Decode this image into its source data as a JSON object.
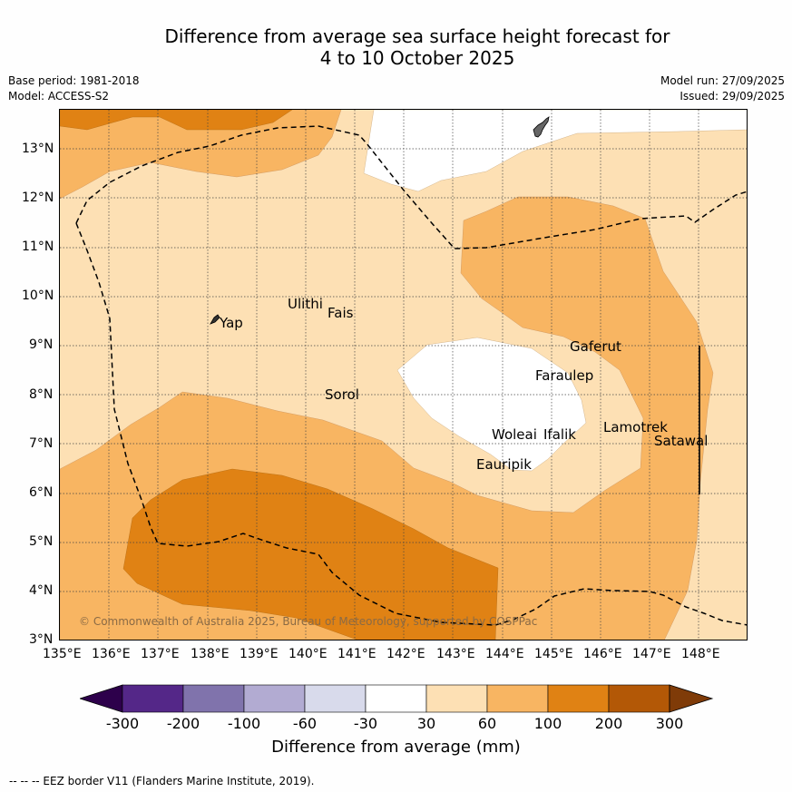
{
  "title": {
    "line1": "Difference from average sea surface height forecast for",
    "line2": "4 to 10 October 2025"
  },
  "meta": {
    "base_period": "Base period: 1981-2018",
    "model": "Model: ACCESS-S2",
    "model_run": "Model run: 27/09/2025",
    "issued": "Issued: 29/09/2025"
  },
  "map": {
    "lat_labels": [
      "13°N",
      "12°N",
      "11°N",
      "10°N",
      "9°N",
      "8°N",
      "7°N",
      "6°N",
      "5°N",
      "4°N",
      "3°N"
    ],
    "lon_labels": [
      "135°E",
      "136°E",
      "137°E",
      "138°E",
      "139°E",
      "140°E",
      "141°E",
      "142°E",
      "143°E",
      "144°E",
      "145°E",
      "146°E",
      "147°E",
      "148°E"
    ],
    "places": {
      "yap": "Yap",
      "ulithi": "Ulithi",
      "fais": "Fais",
      "sorol": "Sorol",
      "gaferut": "Gaferut",
      "faraulep": "Faraulep",
      "woleai": "Woleai",
      "ifalik": "Ifalik",
      "lamotrek": "Lamotrek",
      "satawal": "Satawal",
      "eauripik": "Eauripik"
    },
    "copyright": "© Commonwealth of Australia 2025, Bureau of Meteorology, supported by COSPPac",
    "colors": {
      "c30_60": "#fde0b4",
      "c60_100": "#f8b562",
      "c100_200": "#e08214",
      "c200_300": "#b35806",
      "cneutral": "#ffffff"
    }
  },
  "colorbar": {
    "ticks": [
      "-300",
      "-200",
      "-100",
      "-60",
      "-30",
      "30",
      "60",
      "100",
      "200",
      "300"
    ],
    "colors": [
      "#542788",
      "#8073ac",
      "#b2abd2",
      "#d8daeb",
      "#ffffff",
      "#fde0b4",
      "#f8b562",
      "#e08214",
      "#b35806"
    ],
    "under_color": "#2d004b",
    "over_color": "#7f3b08",
    "label": "Difference from average (mm)"
  },
  "footnote": "--  --  -- EEZ border V11 (Flanders Marine Institute, 2019)."
}
